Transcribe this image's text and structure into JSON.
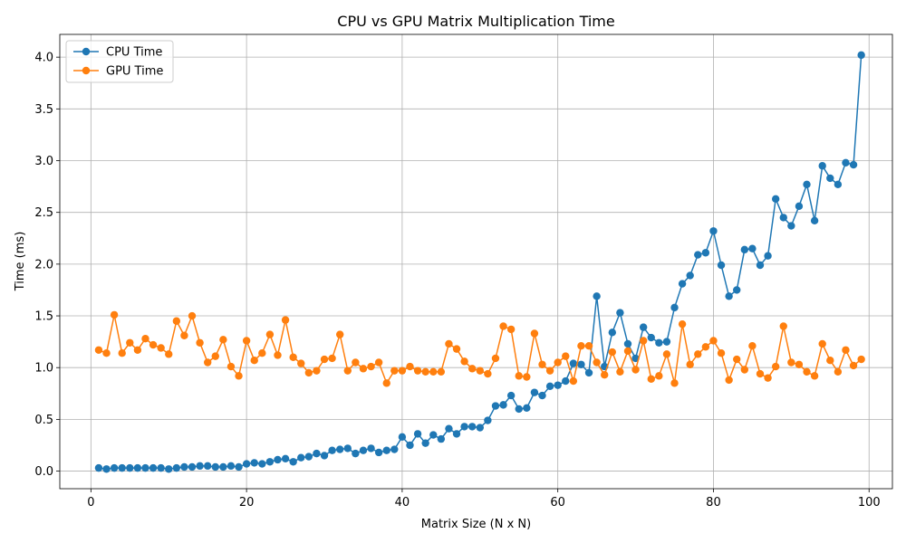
{
  "chart_data": {
    "type": "line",
    "title": "CPU vs GPU Matrix Multiplication Time",
    "xlabel": "Matrix Size (N x N)",
    "ylabel": "Time (ms)",
    "xlim": [
      -4,
      103
    ],
    "ylim": [
      -0.17,
      4.22
    ],
    "xticks": [
      0,
      20,
      40,
      60,
      80,
      100
    ],
    "yticks": [
      0.0,
      0.5,
      1.0,
      1.5,
      2.0,
      2.5,
      3.0,
      3.5,
      4.0
    ],
    "grid": true,
    "legend_position": "top-left",
    "x": [
      1,
      2,
      3,
      4,
      5,
      6,
      7,
      8,
      9,
      10,
      11,
      12,
      13,
      14,
      15,
      16,
      17,
      18,
      19,
      20,
      21,
      22,
      23,
      24,
      25,
      26,
      27,
      28,
      29,
      30,
      31,
      32,
      33,
      34,
      35,
      36,
      37,
      38,
      39,
      40,
      41,
      42,
      43,
      44,
      45,
      46,
      47,
      48,
      49,
      50,
      51,
      52,
      53,
      54,
      55,
      56,
      57,
      58,
      59,
      60,
      61,
      62,
      63,
      64,
      65,
      66,
      67,
      68,
      69,
      70,
      71,
      72,
      73,
      74,
      75,
      76,
      77,
      78,
      79,
      80,
      81,
      82,
      83,
      84,
      85,
      86,
      87,
      88,
      89,
      90,
      91,
      92,
      93,
      94,
      95,
      96,
      97,
      98,
      99
    ],
    "series": [
      {
        "name": "CPU Time",
        "color": "#1f77b4",
        "values": [
          0.03,
          0.02,
          0.03,
          0.03,
          0.03,
          0.03,
          0.03,
          0.03,
          0.03,
          0.02,
          0.03,
          0.04,
          0.04,
          0.05,
          0.05,
          0.04,
          0.04,
          0.05,
          0.04,
          0.07,
          0.08,
          0.07,
          0.09,
          0.11,
          0.12,
          0.09,
          0.13,
          0.14,
          0.17,
          0.15,
          0.2,
          0.21,
          0.22,
          0.17,
          0.2,
          0.22,
          0.18,
          0.2,
          0.21,
          0.33,
          0.25,
          0.36,
          0.27,
          0.35,
          0.31,
          0.41,
          0.36,
          0.43,
          0.43,
          0.42,
          0.49,
          0.63,
          0.64,
          0.73,
          0.6,
          0.61,
          0.76,
          0.73,
          0.82,
          0.83,
          0.87,
          1.04,
          1.03,
          0.95,
          1.69,
          1.01,
          1.34,
          1.53,
          1.23,
          1.09,
          1.39,
          1.29,
          1.24,
          1.25,
          1.58,
          1.81,
          1.89,
          2.09,
          2.11,
          2.32,
          1.99,
          1.69,
          1.75,
          2.14,
          2.15,
          1.99,
          2.08,
          2.63,
          2.45,
          2.37,
          2.56,
          2.77,
          2.42,
          2.95,
          2.83,
          2.77,
          2.98,
          2.96,
          4.02
        ]
      },
      {
        "name": "GPU Time",
        "color": "#ff7f0e",
        "values": [
          1.17,
          1.14,
          1.51,
          1.14,
          1.24,
          1.17,
          1.28,
          1.22,
          1.19,
          1.13,
          1.45,
          1.31,
          1.5,
          1.24,
          1.05,
          1.11,
          1.27,
          1.01,
          0.92,
          1.26,
          1.07,
          1.14,
          1.32,
          1.12,
          1.46,
          1.1,
          1.04,
          0.95,
          0.97,
          1.08,
          1.09,
          1.32,
          0.97,
          1.05,
          0.99,
          1.01,
          1.05,
          0.85,
          0.97,
          0.97,
          1.01,
          0.97,
          0.96,
          0.96,
          0.96,
          1.23,
          1.18,
          1.06,
          0.99,
          0.97,
          0.94,
          1.09,
          1.4,
          1.37,
          0.92,
          0.91,
          1.33,
          1.03,
          0.97,
          1.05,
          1.11,
          0.87,
          1.21,
          1.21,
          1.05,
          0.93,
          1.15,
          0.96,
          1.16,
          0.98,
          1.26,
          0.89,
          0.92,
          1.13,
          0.85,
          1.42,
          1.03,
          1.13,
          1.2,
          1.26,
          1.14,
          0.88,
          1.08,
          0.98,
          1.21,
          0.94,
          0.9,
          1.01,
          1.4,
          1.05,
          1.03,
          0.96,
          0.92,
          1.23,
          1.07,
          0.96,
          1.17,
          1.02,
          1.08
        ]
      }
    ]
  }
}
